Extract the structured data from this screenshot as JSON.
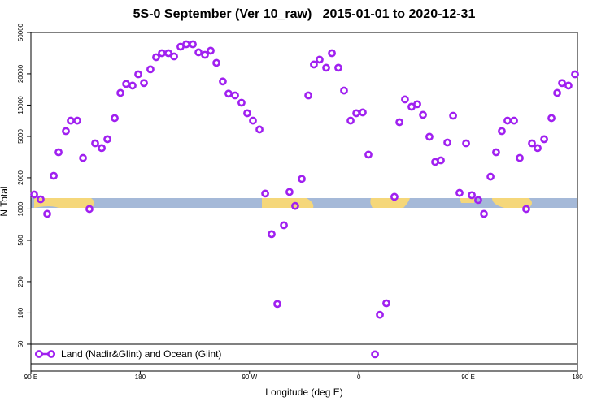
{
  "chart_data": {
    "type": "scatter",
    "title": "5S-0 September (Ver 10_raw)   2015-01-01 to 2020-12-31",
    "x_label": "Longitude (deg E)",
    "y_label": "N Total",
    "log_y": true,
    "legend": "bottom-left",
    "xlim": [
      90,
      540
    ],
    "xticks": [
      {
        "value": 90,
        "label": "90 E"
      },
      180,
      {
        "value": 270,
        "label": "90 W"
      },
      {
        "value": 360,
        "label": "0"
      },
      {
        "value": 450,
        "label": "90 E"
      },
      {
        "value": 540,
        "label": "180"
      }
    ],
    "ylim": [
      27.6,
      50000
    ],
    "yticks": [
      50,
      100,
      200,
      500,
      1000,
      2000,
      5000,
      10000,
      20000,
      50000
    ],
    "series": [
      {
        "name": "Land (Nadir&Glint) and Ocean (Glint)",
        "color": "#a020f0",
        "x": [
          92.7,
          98,
          103.4,
          108.8,
          112.8,
          118.8,
          122.8,
          128.2,
          132.9,
          138.2,
          142.9,
          148.3,
          153,
          159,
          163.7,
          168.4,
          173.7,
          178.4,
          183.1,
          188.4,
          193.1,
          197.8,
          203.2,
          207.9,
          213.2,
          217.9,
          223.3,
          228,
          233.3,
          238,
          242.7,
          248,
          252.7,
          258.1,
          263.4,
          268.1,
          272.8,
          278.2,
          282.9,
          288.2,
          292.9,
          298.3,
          302.9,
          307.6,
          313,
          318.4,
          323,
          327.7,
          333.1,
          337.8,
          343.1,
          347.8,
          353.2,
          357.9,
          363.2,
          367.9,
          373.3,
          377.3,
          382.6,
          389.3,
          393.4,
          398,
          403.4,
          408.1,
          412.8,
          418.1,
          422.8,
          427.5,
          432.9,
          437.6,
          442.9,
          448.3,
          453,
          458.3,
          463,
          468.4,
          473,
          477.7,
          482.4,
          487.8,
          492.5,
          497.8,
          502.5,
          507.2,
          512.6,
          518.6,
          523.3,
          527.3,
          532.6,
          538
        ],
        "values": [
          1380,
          1240,
          898,
          2090,
          3520,
          5620,
          7090,
          7090,
          3100,
          1000,
          4290,
          3860,
          4700,
          7500,
          13100,
          16000,
          15400,
          19800,
          16300,
          22100,
          28900,
          31600,
          31600,
          29400,
          36500,
          38500,
          38500,
          32200,
          30500,
          33400,
          25500,
          16900,
          12900,
          12400,
          10550,
          8360,
          7090,
          5830,
          1410,
          573,
          122,
          698,
          1460,
          1070,
          1950,
          12400,
          24600,
          27400,
          22900,
          31600,
          22900,
          13800,
          7090,
          8360,
          8510,
          3340,
          40,
          96,
          124,
          1310,
          6850,
          11350,
          9650,
          10200,
          8060,
          4960,
          2840,
          2940,
          4370,
          7910,
          1430,
          4290,
          1360,
          1220,
          898,
          2050,
          3520,
          5620,
          7090,
          7090,
          3100,
          1000,
          4290,
          3860,
          4700,
          7500,
          13100,
          16300,
          15400,
          19800
        ]
      }
    ]
  }
}
